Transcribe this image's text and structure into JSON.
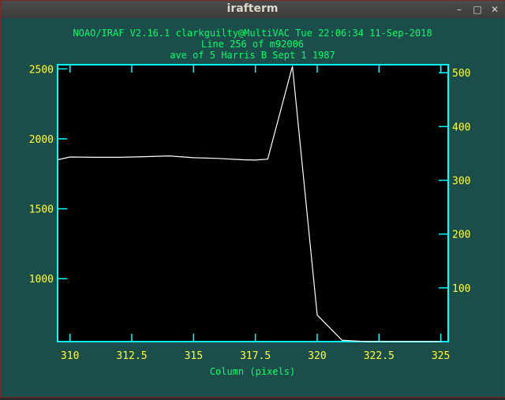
{
  "window": {
    "title": "irafterm",
    "buttons": {
      "minimize": "–",
      "maximize": "□",
      "close": "✕"
    }
  },
  "plot": {
    "header_line1": "NOAO/IRAF V2.16.1 clarkguilty@MultiVAC Tue 22:06:34 11-Sep-2018",
    "header_line2": "Line 256 of m92006",
    "header_line3": "ave of  5 Harris B Sept 1 1987",
    "xlabel": "Column (pixels)"
  },
  "colors": {
    "background": "#1b4e4a",
    "plot_area": "#000000",
    "frame": "#00ffff",
    "text": "#00ff66",
    "ticklabels": "#ffff33",
    "curve": "#ffffff"
  },
  "chart_data": {
    "type": "line",
    "x": [
      309.5,
      310,
      311,
      312,
      313,
      314,
      315,
      316,
      317,
      317.5,
      318,
      319,
      320,
      321,
      322,
      323,
      324,
      325
    ],
    "values": [
      1850,
      1870,
      1868,
      1868,
      1872,
      1878,
      1865,
      1860,
      1850,
      1848,
      1855,
      2520,
      740,
      560,
      550,
      548,
      548,
      548
    ],
    "xlim": [
      309.5,
      325.3
    ],
    "ylim": [
      550,
      2530
    ],
    "x_ticks": [
      310,
      312.5,
      315,
      317.5,
      320,
      322.5,
      325
    ],
    "x_tick_labels": [
      "310",
      "312.5",
      "315",
      "317.5",
      "320",
      "322.5",
      "325"
    ],
    "y_ticks": [
      1000,
      1500,
      2000,
      2500
    ],
    "y_tick_labels": [
      "1000",
      "1500",
      "2000",
      "2500"
    ],
    "y2_ticks": [
      100,
      200,
      300,
      400,
      500
    ],
    "y2_tick_labels": [
      "100",
      "200",
      "300",
      "400",
      "500"
    ],
    "y2lim": [
      0,
      515
    ],
    "xlabel": "Column (pixels)",
    "title": "NOAO/IRAF V2.16.1 clarkguilty@MultiVAC Tue 22:06:34 11-Sep-2018"
  }
}
